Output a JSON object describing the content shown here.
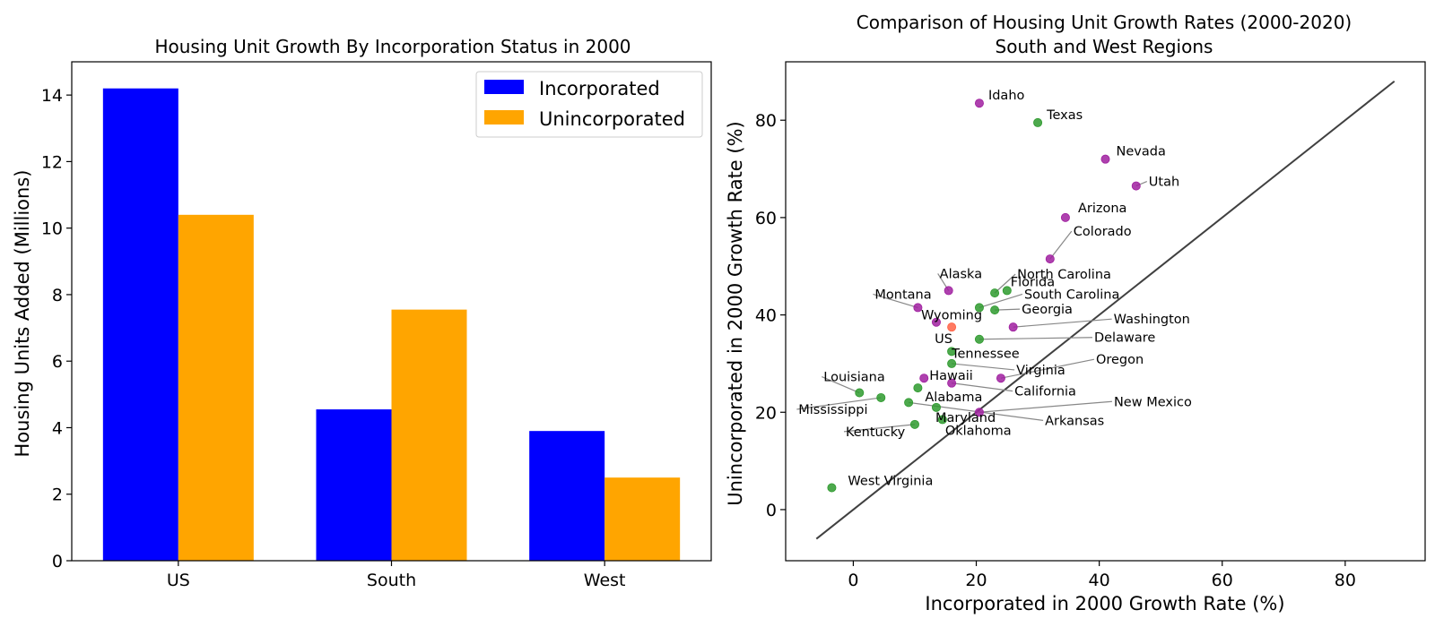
{
  "chart_data": [
    {
      "type": "bar",
      "title": "Housing Unit Growth By Incorporation Status in 2000",
      "xlabel": "",
      "ylabel": "Housing Units Added (Millions)",
      "categories": [
        "US",
        "South",
        "West"
      ],
      "ylim": [
        0,
        15
      ],
      "yticks": [
        "0",
        "2",
        "4",
        "6",
        "8",
        "10",
        "12",
        "14"
      ],
      "series": [
        {
          "name": "Incorporated",
          "color": "#0000ff",
          "values": [
            14.2,
            4.55,
            3.9
          ]
        },
        {
          "name": "Unincorporated",
          "color": "#ffa500",
          "values": [
            10.4,
            7.55,
            2.5
          ]
        }
      ],
      "legend": "top-right",
      "grid": false
    },
    {
      "type": "scatter",
      "title": "Comparison of Housing Unit Growth Rates (2000-2020)",
      "subtitle": "South and West Regions",
      "xlabel": "Incorporated in 2000 Growth Rate (%)",
      "ylabel": "Unincorporated in 2000 Growth Rate (%)",
      "xlim": [
        -11,
        93
      ],
      "ylim": [
        -10.5,
        92
      ],
      "xticks": [
        "0",
        "20",
        "40",
        "60",
        "80"
      ],
      "yticks": [
        "0",
        "20",
        "40",
        "60",
        "80"
      ],
      "grid": false,
      "reference_line": {
        "from": [
          -6,
          -6
        ],
        "to": [
          88,
          88
        ],
        "color": "#404040"
      },
      "colors": {
        "west": "#a020a0",
        "south": "#2e9a2e",
        "us": "#ff6347"
      },
      "points": [
        {
          "label": "Idaho",
          "x": 20.5,
          "y": 83.5,
          "group": "west"
        },
        {
          "label": "Texas",
          "x": 30.0,
          "y": 79.5,
          "group": "south"
        },
        {
          "label": "Nevada",
          "x": 41.0,
          "y": 72.0,
          "group": "west"
        },
        {
          "label": "Utah",
          "x": 46.0,
          "y": 66.5,
          "group": "west"
        },
        {
          "label": "Arizona",
          "x": 34.5,
          "y": 60.0,
          "group": "west"
        },
        {
          "label": "Colorado",
          "x": 32.0,
          "y": 51.5,
          "group": "west"
        },
        {
          "label": "Florida",
          "x": 25.0,
          "y": 45.0,
          "group": "south"
        },
        {
          "label": "North Carolina",
          "x": 23.0,
          "y": 44.5,
          "group": "south"
        },
        {
          "label": "Alaska",
          "x": 15.5,
          "y": 45.0,
          "group": "west"
        },
        {
          "label": "South Carolina",
          "x": 20.5,
          "y": 41.5,
          "group": "south"
        },
        {
          "label": "Georgia",
          "x": 23.0,
          "y": 41.0,
          "group": "south"
        },
        {
          "label": "Montana",
          "x": 10.5,
          "y": 41.5,
          "group": "west"
        },
        {
          "label": "Wyoming",
          "x": 13.5,
          "y": 38.5,
          "group": "west"
        },
        {
          "label": "US",
          "x": 16.0,
          "y": 37.5,
          "group": "us"
        },
        {
          "label": "Washington",
          "x": 26.0,
          "y": 37.5,
          "group": "west"
        },
        {
          "label": "Delaware",
          "x": 20.5,
          "y": 35.0,
          "group": "south"
        },
        {
          "label": "Tennessee",
          "x": 16.0,
          "y": 32.5,
          "group": "south"
        },
        {
          "label": "Virginia",
          "x": 16.0,
          "y": 30.0,
          "group": "south"
        },
        {
          "label": "Oregon",
          "x": 24.0,
          "y": 27.0,
          "group": "west"
        },
        {
          "label": "Hawaii",
          "x": 11.5,
          "y": 27.0,
          "group": "west"
        },
        {
          "label": "California",
          "x": 16.0,
          "y": 26.0,
          "group": "west"
        },
        {
          "label": "Louisiana",
          "x": 1.0,
          "y": 24.0,
          "group": "south"
        },
        {
          "label": "Alabama",
          "x": 10.5,
          "y": 25.0,
          "group": "south"
        },
        {
          "label": "Mississippi",
          "x": 4.5,
          "y": 23.0,
          "group": "south"
        },
        {
          "label": "Arkansas",
          "x": 9.0,
          "y": 22.0,
          "group": "south"
        },
        {
          "label": "New Mexico",
          "x": 20.5,
          "y": 20.0,
          "group": "west"
        },
        {
          "label": "Maryland",
          "x": 13.5,
          "y": 21.0,
          "group": "south"
        },
        {
          "label": "Oklahoma",
          "x": 14.5,
          "y": 18.5,
          "group": "south"
        },
        {
          "label": "Kentucky",
          "x": 10.0,
          "y": 17.5,
          "group": "south"
        },
        {
          "label": "West Virginia",
          "x": -3.5,
          "y": 4.5,
          "group": "south"
        }
      ]
    }
  ]
}
